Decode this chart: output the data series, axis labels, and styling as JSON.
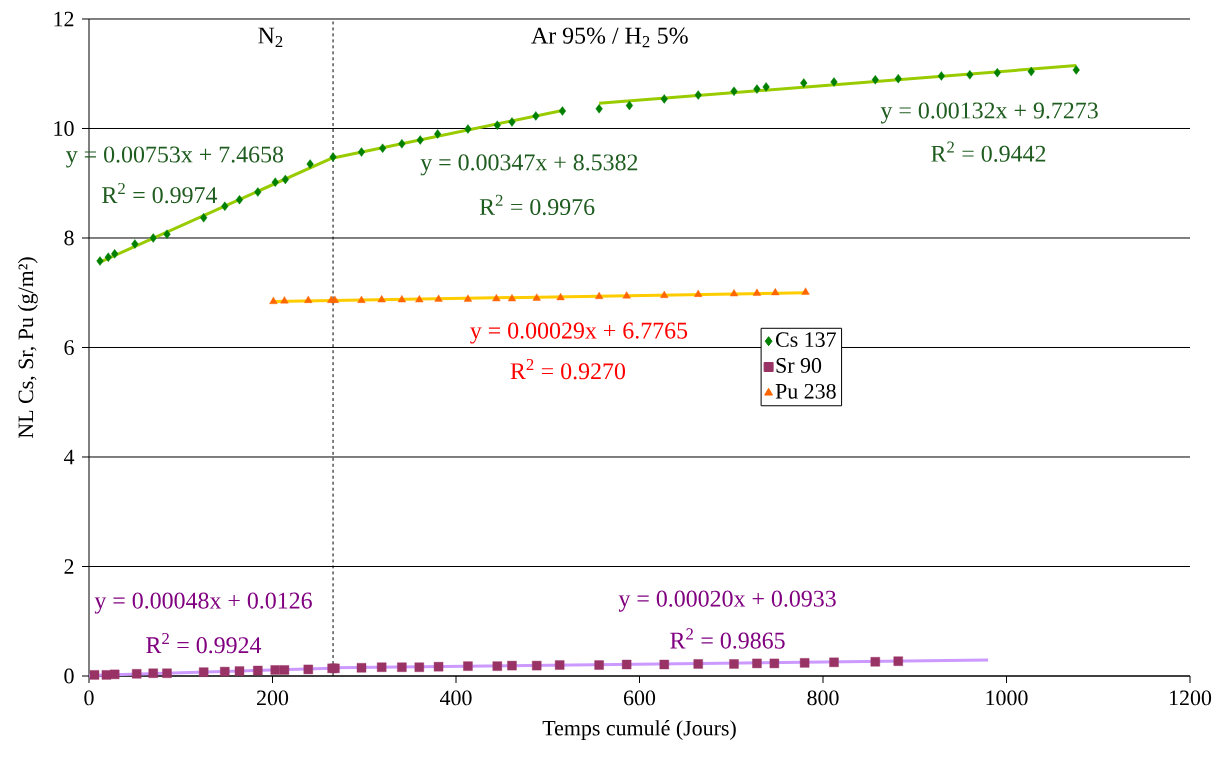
{
  "chart_data": {
    "type": "scatter",
    "xlabel": "Temps cumulé (Jours)",
    "ylabel": "NL Cs, Sr, Pu (g/m²)",
    "xlim": [
      0,
      1200
    ],
    "ylim": [
      0,
      12
    ],
    "xticks": [
      0,
      200,
      400,
      600,
      800,
      1000,
      1200
    ],
    "yticks": [
      0,
      2,
      4,
      6,
      8,
      10,
      12
    ],
    "grid": "y",
    "legend": "right",
    "series": [
      {
        "name": "Cs 137",
        "color": "#008000",
        "marker": "diamond",
        "x": [
          12,
          21,
          28,
          50,
          70,
          85,
          125,
          148,
          164,
          184,
          203,
          214,
          241,
          266,
          297,
          320,
          341,
          361,
          380,
          413,
          445,
          461,
          487,
          516,
          556,
          589,
          627,
          664,
          703,
          728,
          738,
          779,
          812,
          857,
          882,
          929,
          960,
          990,
          1027,
          1076
        ],
        "values": [
          7.58,
          7.65,
          7.71,
          7.89,
          8.0,
          8.07,
          8.37,
          8.58,
          8.7,
          8.84,
          9.02,
          9.07,
          9.35,
          9.48,
          9.57,
          9.64,
          9.72,
          9.79,
          9.9,
          9.99,
          10.06,
          10.12,
          10.23,
          10.32,
          10.36,
          10.42,
          10.54,
          10.61,
          10.68,
          10.72,
          10.76,
          10.83,
          10.85,
          10.89,
          10.91,
          10.96,
          10.98,
          11.02,
          11.04,
          11.07
        ]
      },
      {
        "name": "Sr 90",
        "color": "#993366",
        "marker": "square",
        "x": [
          6,
          19,
          28,
          52,
          70,
          85,
          125,
          148,
          164,
          184,
          203,
          213,
          239,
          265,
          268,
          297,
          319,
          341,
          360,
          381,
          413,
          445,
          461,
          488,
          513,
          556,
          586,
          627,
          664,
          703,
          728,
          747,
          780,
          812,
          857,
          882
        ],
        "values": [
          0.02,
          0.02,
          0.03,
          0.04,
          0.05,
          0.05,
          0.07,
          0.08,
          0.09,
          0.1,
          0.11,
          0.11,
          0.12,
          0.14,
          0.14,
          0.15,
          0.16,
          0.16,
          0.16,
          0.17,
          0.18,
          0.18,
          0.19,
          0.19,
          0.2,
          0.2,
          0.21,
          0.21,
          0.22,
          0.22,
          0.23,
          0.23,
          0.24,
          0.25,
          0.26,
          0.27
        ]
      },
      {
        "name": "Pu 238",
        "color": "#ff6600",
        "marker": "triangle",
        "x": [
          201,
          213,
          239,
          264,
          268,
          297,
          319,
          341,
          360,
          381,
          413,
          444,
          461,
          488,
          514,
          556,
          586,
          627,
          664,
          703,
          728,
          748,
          781
        ],
        "values": [
          6.84,
          6.85,
          6.86,
          6.86,
          6.86,
          6.86,
          6.87,
          6.87,
          6.87,
          6.88,
          6.88,
          6.89,
          6.89,
          6.9,
          6.91,
          6.93,
          6.94,
          6.95,
          6.97,
          6.98,
          6.99,
          7.0,
          7.01
        ]
      },
      {
        "type": "line",
        "color": "#99cc00",
        "marker": "none",
        "x": [
          12,
          266
        ],
        "values": [
          7.56,
          9.47
        ]
      },
      {
        "type": "line",
        "color": "#99cc00",
        "marker": "none",
        "x": [
          266,
          516
        ],
        "values": [
          9.46,
          10.33
        ]
      },
      {
        "type": "line",
        "color": "#99cc00",
        "marker": "none",
        "x": [
          556,
          1076
        ],
        "values": [
          10.46,
          11.15
        ]
      },
      {
        "type": "line",
        "color": "#ffcc00",
        "marker": "none",
        "x": [
          201,
          781
        ],
        "values": [
          6.84,
          7.0
        ]
      },
      {
        "type": "line",
        "color": "#cc99ff",
        "marker": "none",
        "x": [
          0,
          265
        ],
        "values": [
          0.01,
          0.14
        ]
      },
      {
        "type": "line",
        "color": "#cc99ff",
        "marker": "none",
        "x": [
          265,
          980
        ],
        "values": [
          0.15,
          0.29
        ]
      }
    ],
    "ref_lines": [
      {
        "axis": "x",
        "value": 266,
        "color": "#000000",
        "line_style": "dashed"
      }
    ],
    "annotations": [
      "N$_{2}$",
      "Ar 95% / H$_{2}$ 5%",
      "y = 0.00753x + 7.4658",
      "R$^{2}$ = 0.9974",
      "y = 0.00347x + 8.5382",
      "R$^{2}$ = 0.9976",
      "y = 0.00132x + 9.7273",
      "R$^{2}$ = 0.9442",
      "y = 0.00029x + 6.7765",
      "R$^{2}$ = 0.9270",
      "y = 0.00048x + 0.0126",
      "R$^{2}$ = 0.9924",
      "y = 0.00020x + 0.0933",
      "R$^{2}$ = 0.9865"
    ]
  }
}
